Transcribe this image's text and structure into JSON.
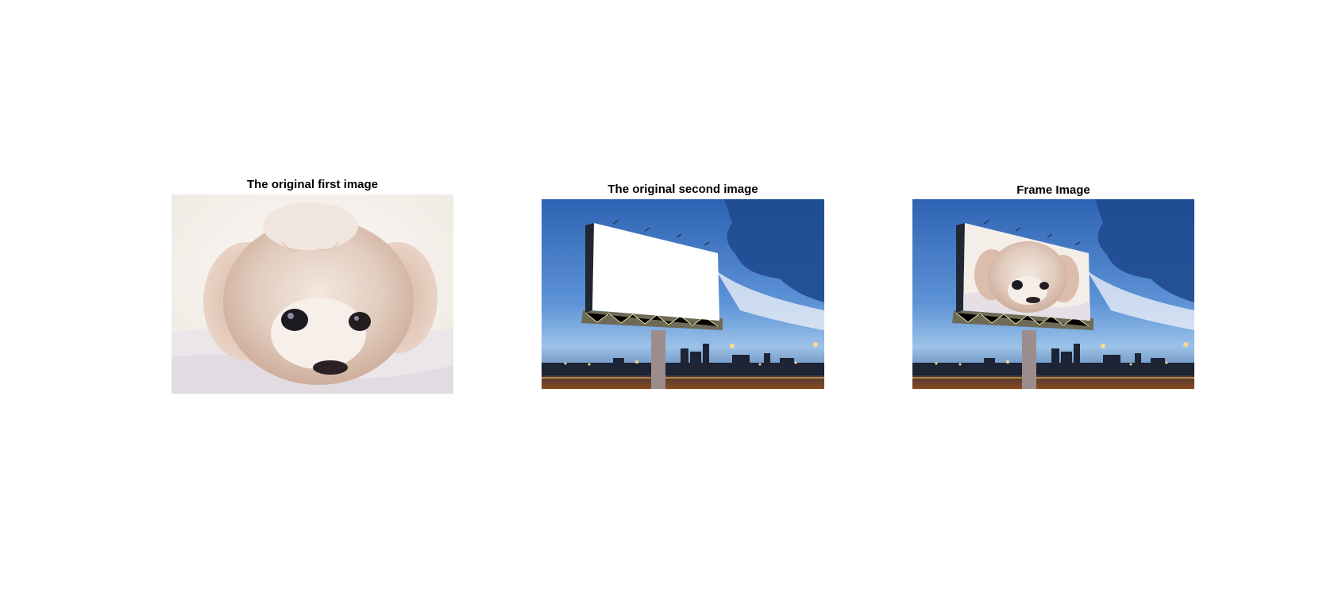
{
  "figure": {
    "panels": [
      {
        "title": "The original first image",
        "image": "fluffy-white-puppy-photo"
      },
      {
        "title": "The original second image",
        "image": "blank-billboard-city-dusk-photo"
      },
      {
        "title": "Frame Image",
        "image": "billboard-with-puppy-composite-photo"
      }
    ]
  },
  "colors": {
    "sky_top": "#2a5fb0",
    "sky_mid": "#4d86d1",
    "cloud_dark": "#1e4688",
    "ground": "#6b3c1c",
    "billboard_face": "#ffffff",
    "puppy_fur": "#e8d8cc",
    "puppy_bg": "#f6f1ec"
  }
}
